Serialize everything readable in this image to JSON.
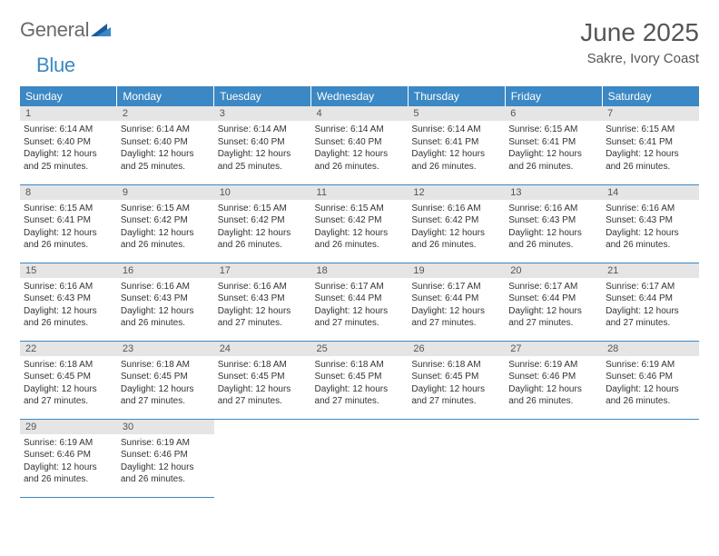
{
  "brand": {
    "word1": "General",
    "word2": "Blue"
  },
  "title": "June 2025",
  "location": "Sakre, Ivory Coast",
  "colors": {
    "header_bg": "#3b88c4",
    "header_text": "#ffffff",
    "daynum_bg": "#e5e5e5",
    "text": "#333333",
    "rule": "#3b88c4"
  },
  "weekdays": [
    "Sunday",
    "Monday",
    "Tuesday",
    "Wednesday",
    "Thursday",
    "Friday",
    "Saturday"
  ],
  "labels": {
    "sunrise": "Sunrise:",
    "sunset": "Sunset:",
    "daylight": "Daylight:"
  },
  "days": [
    {
      "n": 1,
      "sunrise": "6:14 AM",
      "sunset": "6:40 PM",
      "daylight": "12 hours and 25 minutes."
    },
    {
      "n": 2,
      "sunrise": "6:14 AM",
      "sunset": "6:40 PM",
      "daylight": "12 hours and 25 minutes."
    },
    {
      "n": 3,
      "sunrise": "6:14 AM",
      "sunset": "6:40 PM",
      "daylight": "12 hours and 25 minutes."
    },
    {
      "n": 4,
      "sunrise": "6:14 AM",
      "sunset": "6:40 PM",
      "daylight": "12 hours and 26 minutes."
    },
    {
      "n": 5,
      "sunrise": "6:14 AM",
      "sunset": "6:41 PM",
      "daylight": "12 hours and 26 minutes."
    },
    {
      "n": 6,
      "sunrise": "6:15 AM",
      "sunset": "6:41 PM",
      "daylight": "12 hours and 26 minutes."
    },
    {
      "n": 7,
      "sunrise": "6:15 AM",
      "sunset": "6:41 PM",
      "daylight": "12 hours and 26 minutes."
    },
    {
      "n": 8,
      "sunrise": "6:15 AM",
      "sunset": "6:41 PM",
      "daylight": "12 hours and 26 minutes."
    },
    {
      "n": 9,
      "sunrise": "6:15 AM",
      "sunset": "6:42 PM",
      "daylight": "12 hours and 26 minutes."
    },
    {
      "n": 10,
      "sunrise": "6:15 AM",
      "sunset": "6:42 PM",
      "daylight": "12 hours and 26 minutes."
    },
    {
      "n": 11,
      "sunrise": "6:15 AM",
      "sunset": "6:42 PM",
      "daylight": "12 hours and 26 minutes."
    },
    {
      "n": 12,
      "sunrise": "6:16 AM",
      "sunset": "6:42 PM",
      "daylight": "12 hours and 26 minutes."
    },
    {
      "n": 13,
      "sunrise": "6:16 AM",
      "sunset": "6:43 PM",
      "daylight": "12 hours and 26 minutes."
    },
    {
      "n": 14,
      "sunrise": "6:16 AM",
      "sunset": "6:43 PM",
      "daylight": "12 hours and 26 minutes."
    },
    {
      "n": 15,
      "sunrise": "6:16 AM",
      "sunset": "6:43 PM",
      "daylight": "12 hours and 26 minutes."
    },
    {
      "n": 16,
      "sunrise": "6:16 AM",
      "sunset": "6:43 PM",
      "daylight": "12 hours and 26 minutes."
    },
    {
      "n": 17,
      "sunrise": "6:16 AM",
      "sunset": "6:43 PM",
      "daylight": "12 hours and 27 minutes."
    },
    {
      "n": 18,
      "sunrise": "6:17 AM",
      "sunset": "6:44 PM",
      "daylight": "12 hours and 27 minutes."
    },
    {
      "n": 19,
      "sunrise": "6:17 AM",
      "sunset": "6:44 PM",
      "daylight": "12 hours and 27 minutes."
    },
    {
      "n": 20,
      "sunrise": "6:17 AM",
      "sunset": "6:44 PM",
      "daylight": "12 hours and 27 minutes."
    },
    {
      "n": 21,
      "sunrise": "6:17 AM",
      "sunset": "6:44 PM",
      "daylight": "12 hours and 27 minutes."
    },
    {
      "n": 22,
      "sunrise": "6:18 AM",
      "sunset": "6:45 PM",
      "daylight": "12 hours and 27 minutes."
    },
    {
      "n": 23,
      "sunrise": "6:18 AM",
      "sunset": "6:45 PM",
      "daylight": "12 hours and 27 minutes."
    },
    {
      "n": 24,
      "sunrise": "6:18 AM",
      "sunset": "6:45 PM",
      "daylight": "12 hours and 27 minutes."
    },
    {
      "n": 25,
      "sunrise": "6:18 AM",
      "sunset": "6:45 PM",
      "daylight": "12 hours and 27 minutes."
    },
    {
      "n": 26,
      "sunrise": "6:18 AM",
      "sunset": "6:45 PM",
      "daylight": "12 hours and 27 minutes."
    },
    {
      "n": 27,
      "sunrise": "6:19 AM",
      "sunset": "6:46 PM",
      "daylight": "12 hours and 26 minutes."
    },
    {
      "n": 28,
      "sunrise": "6:19 AM",
      "sunset": "6:46 PM",
      "daylight": "12 hours and 26 minutes."
    },
    {
      "n": 29,
      "sunrise": "6:19 AM",
      "sunset": "6:46 PM",
      "daylight": "12 hours and 26 minutes."
    },
    {
      "n": 30,
      "sunrise": "6:19 AM",
      "sunset": "6:46 PM",
      "daylight": "12 hours and 26 minutes."
    }
  ],
  "start_weekday": 0,
  "total_cells": 35
}
